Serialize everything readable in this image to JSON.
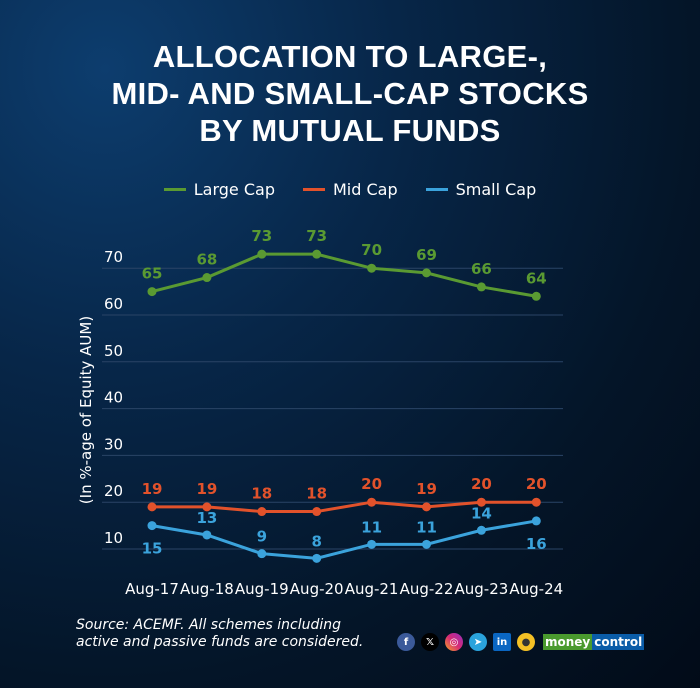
{
  "title_lines": [
    "ALLOCATION TO LARGE-,",
    "MID- AND SMALL-CAP STOCKS",
    "BY MUTUAL FUNDS"
  ],
  "source_lines": [
    "Source: ACEMF. All schemes including",
    "active and passive funds are considered."
  ],
  "brand": {
    "part1": "money",
    "part2": "control",
    "color1": "#4a9a2e",
    "color2": "#0a5ca8"
  },
  "social_icons": [
    "facebook-icon",
    "x-icon",
    "instagram-icon",
    "telegram-icon",
    "linkedin-icon",
    "koo-icon"
  ],
  "chart_data": {
    "type": "line",
    "title": "ALLOCATION TO LARGE-, MID- AND SMALL-CAP STOCKS BY MUTUAL FUNDS",
    "xlabel": "",
    "ylabel": "(In %-age of Equity AUM)",
    "categories": [
      "Aug-17",
      "Aug-18",
      "Aug-19",
      "Aug-20",
      "Aug-21",
      "Aug-22",
      "Aug-23",
      "Aug-24"
    ],
    "yticks": [
      10,
      20,
      30,
      40,
      50,
      60,
      70
    ],
    "ylim": [
      10,
      70
    ],
    "grid": true,
    "legend_position": "top",
    "series": [
      {
        "name": "Large Cap",
        "color": "#5a9a32",
        "values": [
          65,
          68,
          73,
          73,
          70,
          69,
          66,
          64
        ]
      },
      {
        "name": "Mid Cap",
        "color": "#e2522b",
        "values": [
          19,
          19,
          18,
          18,
          20,
          19,
          20,
          20
        ]
      },
      {
        "name": "Small Cap",
        "color": "#3ba3dc",
        "values": [
          15,
          13,
          9,
          8,
          11,
          11,
          14,
          16
        ]
      }
    ]
  }
}
